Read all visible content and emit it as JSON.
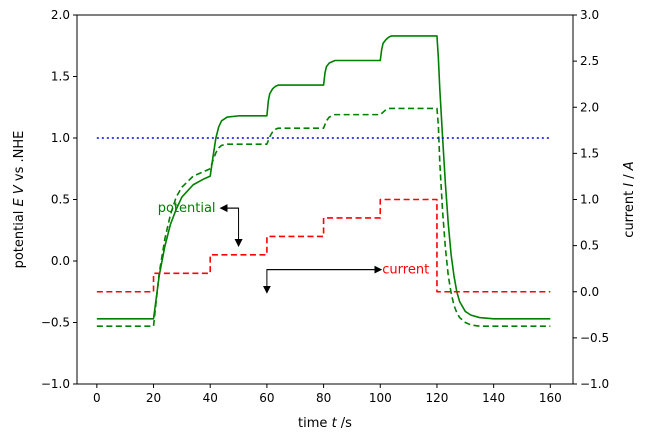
{
  "chart_data": {
    "type": "line",
    "xlabel": "time t /s",
    "ylabel_left": "potential E V vs .NHE",
    "ylabel_right": "current I / A",
    "xlim": [
      -7,
      168
    ],
    "ylim_left": [
      -1.0,
      2.0
    ],
    "ylim_right": [
      -1.0,
      3.0
    ],
    "x_ticks": [
      0,
      20,
      40,
      60,
      80,
      100,
      120,
      140,
      160
    ],
    "y_ticks_left": [
      -1.0,
      -0.5,
      0.0,
      0.5,
      1.0,
      1.5,
      2.0
    ],
    "y_ticks_right": [
      -1.0,
      -0.5,
      0.0,
      0.5,
      1.0,
      1.5,
      2.0,
      2.5,
      3.0
    ],
    "grid": false,
    "series": [
      {
        "label": "potential",
        "axis": "left",
        "color": "#008000",
        "style": "solid",
        "x": [
          0,
          20,
          22,
          24,
          26,
          28,
          30,
          34,
          38,
          40,
          41,
          42,
          43,
          44,
          46,
          50,
          60,
          60.5,
          61,
          62,
          63,
          64,
          66,
          70,
          80,
          80.5,
          81,
          82,
          83,
          84,
          86,
          90,
          100,
          100.5,
          101,
          102,
          103,
          104,
          106,
          110,
          120,
          120.5,
          121,
          122,
          123,
          124,
          125,
          126,
          127,
          128,
          130,
          132,
          135,
          140,
          150,
          160
        ],
        "y": [
          -0.47,
          -0.47,
          -0.12,
          0.12,
          0.3,
          0.42,
          0.52,
          0.62,
          0.67,
          0.69,
          0.85,
          1.0,
          1.09,
          1.14,
          1.17,
          1.18,
          1.18,
          1.3,
          1.36,
          1.4,
          1.42,
          1.43,
          1.43,
          1.43,
          1.43,
          1.53,
          1.58,
          1.61,
          1.62,
          1.63,
          1.63,
          1.63,
          1.63,
          1.72,
          1.77,
          1.8,
          1.82,
          1.83,
          1.83,
          1.83,
          1.83,
          1.65,
          1.4,
          1.0,
          0.62,
          0.3,
          0.05,
          -0.12,
          -0.25,
          -0.33,
          -0.41,
          -0.44,
          -0.46,
          -0.47,
          -0.47,
          -0.47
        ]
      },
      {
        "label": "potential",
        "axis": "left",
        "color": "#008000",
        "style": "dashed",
        "x": [
          0,
          20,
          22,
          24,
          26,
          28,
          30,
          34,
          38,
          40,
          41,
          42,
          43,
          44,
          46,
          50,
          60,
          61,
          62,
          63,
          64,
          66,
          70,
          80,
          81,
          82,
          83,
          84,
          86,
          90,
          100,
          101,
          102,
          103,
          104,
          106,
          110,
          120,
          120.5,
          121,
          122,
          123,
          124,
          125,
          126,
          127,
          128,
          130,
          132,
          135,
          140,
          150,
          160
        ],
        "y": [
          -0.53,
          -0.53,
          -0.1,
          0.18,
          0.38,
          0.52,
          0.6,
          0.69,
          0.73,
          0.75,
          0.82,
          0.88,
          0.92,
          0.94,
          0.95,
          0.95,
          0.95,
          1.01,
          1.05,
          1.07,
          1.08,
          1.08,
          1.08,
          1.08,
          1.14,
          1.17,
          1.18,
          1.19,
          1.19,
          1.19,
          1.19,
          1.21,
          1.23,
          1.24,
          1.24,
          1.24,
          1.24,
          1.24,
          1.1,
          0.8,
          0.4,
          0.1,
          -0.12,
          -0.26,
          -0.36,
          -0.42,
          -0.46,
          -0.5,
          -0.52,
          -0.53,
          -0.53,
          -0.53,
          -0.53
        ]
      },
      {
        "label": "current",
        "axis": "right",
        "color": "#ff0000",
        "style": "dashed",
        "x": [
          0,
          20,
          20,
          40,
          40,
          60,
          60,
          80,
          80,
          100,
          100,
          120,
          120,
          160
        ],
        "y": [
          0.0,
          0.0,
          0.2,
          0.2,
          0.4,
          0.4,
          0.6,
          0.6,
          0.8,
          0.8,
          1.0,
          1.0,
          0.0,
          0.0
        ]
      },
      {
        "label": "",
        "axis": "left",
        "color": "#0000ff",
        "style": "dotted",
        "x": [
          0,
          160
        ],
        "y": [
          1.0,
          1.0
        ]
      }
    ],
    "annotations": [
      {
        "text": "potential",
        "color": "#008000",
        "x": 44,
        "y": 0.43,
        "axis": "left",
        "arrow_corner": [
          50,
          0.43
        ],
        "arrow_tip": [
          50,
          0.13
        ]
      },
      {
        "text": "current",
        "color": "#ff0000",
        "x": 100,
        "y": 0.24,
        "axis": "right",
        "arrow_corner": [
          60,
          0.24
        ],
        "arrow_tip": [
          60,
          0.0
        ]
      }
    ]
  }
}
